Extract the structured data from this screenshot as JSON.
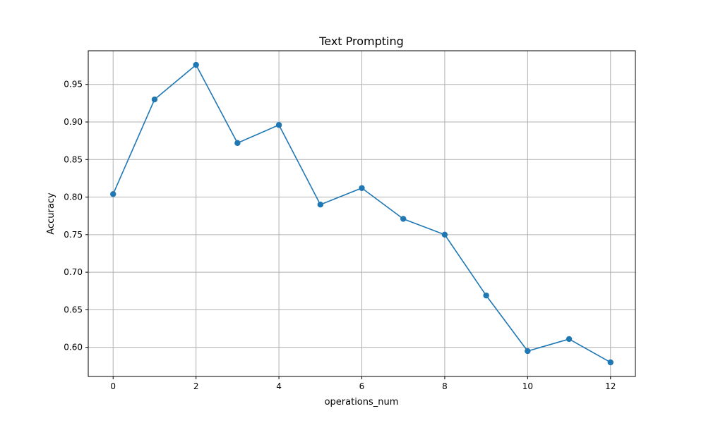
{
  "chart_data": {
    "type": "line",
    "title": "Text Prompting",
    "xlabel": "operations_num",
    "ylabel": "Accuracy",
    "x": [
      0,
      1,
      2,
      3,
      4,
      5,
      6,
      7,
      8,
      9,
      10,
      11,
      12
    ],
    "series": [
      {
        "values": [
          0.804,
          0.93,
          0.976,
          0.872,
          0.896,
          0.79,
          0.812,
          0.771,
          0.75,
          0.669,
          0.595,
          0.611,
          0.58
        ],
        "color": "#1f77b4",
        "marker": "circle"
      }
    ],
    "xlim": [
      -0.6,
      12.6
    ],
    "ylim": [
      0.5612,
      0.9948
    ],
    "xticks": [
      0,
      2,
      4,
      6,
      8,
      10,
      12
    ],
    "yticks": [
      0.6,
      0.65,
      0.7,
      0.75,
      0.8,
      0.85,
      0.9,
      0.95
    ],
    "grid": true
  }
}
